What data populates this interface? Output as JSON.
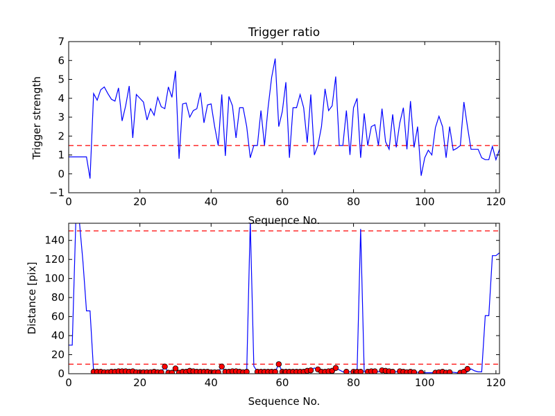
{
  "chart_data": [
    {
      "type": "line",
      "title": "Trigger ratio",
      "xlabel": "Sequence No.",
      "ylabel": "Trigger strength",
      "xlim": [
        0,
        121
      ],
      "ylim": [
        -1,
        7
      ],
      "xticks": [
        0,
        20,
        40,
        60,
        80,
        100,
        120
      ],
      "yticks": [
        -1,
        0,
        1,
        2,
        3,
        4,
        5,
        6,
        7
      ],
      "threshold": 1.5,
      "colors": {
        "line": "#0000ff",
        "threshold": "#ff0000"
      },
      "series": [
        {
          "x": [
            0,
            1,
            2,
            3,
            4,
            5,
            6,
            7,
            8,
            9,
            10,
            11,
            12,
            13,
            14,
            15,
            16,
            17,
            18,
            19,
            20,
            21,
            22,
            23,
            24,
            25,
            26,
            27,
            28,
            29,
            30,
            31,
            32,
            33,
            34,
            35,
            36,
            37,
            38,
            39,
            40,
            41,
            42,
            43,
            44,
            45,
            46,
            47,
            48,
            49,
            50,
            51,
            52,
            53,
            54,
            55,
            56,
            57,
            58,
            59,
            60,
            61,
            62,
            63,
            64,
            65,
            66,
            67,
            68,
            69,
            70,
            71,
            72,
            73,
            74,
            75,
            76,
            77,
            78,
            79,
            80,
            81,
            82,
            83,
            84,
            85,
            86,
            87,
            88,
            89,
            90,
            91,
            92,
            93,
            94,
            95,
            96,
            97,
            98,
            99,
            100,
            101,
            102,
            103,
            104,
            105,
            106,
            107,
            108,
            109,
            110,
            111,
            112,
            113,
            114,
            115,
            116,
            117,
            118,
            119,
            120,
            121
          ],
          "y": [
            0.9,
            0.9,
            0.9,
            0.9,
            0.9,
            0.9,
            -0.25,
            4.25,
            3.9,
            4.45,
            4.6,
            4.25,
            3.95,
            3.85,
            4.55,
            2.8,
            3.6,
            4.65,
            1.9,
            4.2,
            4.0,
            3.8,
            2.85,
            3.45,
            3.1,
            4.05,
            3.55,
            3.45,
            4.6,
            4.05,
            5.45,
            0.8,
            3.7,
            3.75,
            3.0,
            3.35,
            3.45,
            4.3,
            2.7,
            3.65,
            3.7,
            2.5,
            1.5,
            4.2,
            0.95,
            4.1,
            3.6,
            1.9,
            3.5,
            3.5,
            2.5,
            0.85,
            1.5,
            1.5,
            3.35,
            1.5,
            3.5,
            5.1,
            6.1,
            2.5,
            3.3,
            4.85,
            0.85,
            3.5,
            3.5,
            4.2,
            3.5,
            1.65,
            4.2,
            1.0,
            1.5,
            2.5,
            4.5,
            3.35,
            3.6,
            5.15,
            1.5,
            1.5,
            3.35,
            1.0,
            3.5,
            4.0,
            0.85,
            3.2,
            1.5,
            2.5,
            2.6,
            1.5,
            3.45,
            1.7,
            1.3,
            3.15,
            1.4,
            2.7,
            3.5,
            1.3,
            3.85,
            1.4,
            2.5,
            -0.1,
            0.85,
            1.25,
            1.0,
            2.45,
            3.05,
            2.5,
            0.85,
            2.5,
            1.25,
            1.35,
            1.5,
            3.8,
            2.5,
            1.3,
            1.3,
            1.3,
            0.85,
            0.75,
            0.75,
            1.45,
            0.75,
            1.3
          ]
        }
      ]
    },
    {
      "type": "line",
      "xlabel": "Sequence No.",
      "ylabel": "Distance [pix]",
      "xlim": [
        0,
        121
      ],
      "ylim": [
        0,
        158
      ],
      "xticks": [
        0,
        20,
        40,
        60,
        80,
        100,
        120
      ],
      "yticks": [
        0,
        20,
        40,
        60,
        80,
        100,
        120,
        140
      ],
      "thresholds": [
        10,
        150
      ],
      "colors": {
        "line": "#0000ff",
        "threshold": "#ff0000",
        "marker": "#ff0000"
      },
      "series": [
        {
          "x": [
            0,
            1,
            2,
            3,
            4,
            5,
            6,
            7,
            8,
            9,
            10,
            11,
            12,
            13,
            14,
            15,
            16,
            17,
            18,
            19,
            20,
            21,
            22,
            23,
            24,
            25,
            26,
            27,
            28,
            29,
            30,
            31,
            32,
            33,
            34,
            35,
            36,
            37,
            38,
            39,
            40,
            41,
            42,
            43,
            44,
            45,
            46,
            47,
            48,
            49,
            50,
            51,
            52,
            53,
            54,
            55,
            56,
            57,
            58,
            59,
            60,
            61,
            62,
            63,
            64,
            65,
            66,
            67,
            68,
            69,
            70,
            71,
            72,
            73,
            74,
            75,
            76,
            77,
            78,
            79,
            80,
            81,
            82,
            83,
            84,
            85,
            86,
            87,
            88,
            89,
            90,
            91,
            92,
            93,
            94,
            95,
            96,
            97,
            98,
            99,
            100,
            101,
            102,
            103,
            104,
            105,
            106,
            107,
            108,
            109,
            110,
            111,
            112,
            113,
            114,
            115,
            116,
            117,
            118,
            119,
            120,
            121
          ],
          "y": [
            30,
            30,
            160,
            160,
            118,
            66,
            66,
            2,
            2,
            2,
            1.5,
            1.5,
            2,
            2,
            2.5,
            2.5,
            2.5,
            2,
            2.5,
            1.5,
            1.5,
            1.5,
            1.5,
            1.5,
            2,
            1.5,
            1.5,
            7.5,
            1,
            1,
            5.5,
            1,
            2,
            2,
            3,
            2.5,
            2,
            2,
            2,
            2,
            1.5,
            1.5,
            1.5,
            7.5,
            2,
            2,
            2.5,
            2.5,
            2,
            1.5,
            2,
            160,
            8,
            2,
            2,
            2,
            2,
            2,
            2,
            10,
            2,
            2,
            2,
            2,
            2,
            2,
            2,
            3,
            3.5,
            6,
            4.5,
            2,
            2,
            2.5,
            3,
            6,
            4,
            2,
            2,
            2,
            2,
            2,
            152,
            2,
            2,
            2.5,
            2.5,
            2,
            3.5,
            3,
            2.5,
            2,
            2,
            2.5,
            2,
            1.5,
            2,
            1.5,
            1.5,
            1,
            1,
            1,
            1,
            1,
            1,
            1.5,
            2,
            1,
            1.5,
            1,
            1,
            1.5,
            2,
            5,
            3,
            2,
            2,
            61,
            61,
            124,
            124,
            127
          ]
        }
      ],
      "markers": {
        "x": [
          7,
          8,
          9,
          10,
          11,
          12,
          13,
          14,
          15,
          16,
          17,
          18,
          19,
          20,
          21,
          22,
          23,
          24,
          25,
          26,
          27,
          28,
          29,
          30,
          31,
          32,
          33,
          34,
          35,
          36,
          37,
          38,
          39,
          40,
          41,
          42,
          43,
          44,
          45,
          46,
          47,
          48,
          49,
          50,
          53,
          54,
          55,
          56,
          57,
          58,
          59,
          60,
          61,
          62,
          63,
          64,
          65,
          66,
          67,
          68,
          70,
          71,
          72,
          73,
          74,
          75,
          78,
          80,
          81,
          82,
          84,
          85,
          86,
          88,
          89,
          90,
          91,
          93,
          94,
          95,
          96,
          97,
          99,
          103,
          104,
          105,
          106,
          107,
          110,
          111,
          112
        ],
        "y": [
          2,
          2,
          2,
          1.5,
          1.5,
          2,
          2,
          2.5,
          2.5,
          2.5,
          2,
          2.5,
          1.5,
          1.5,
          1.5,
          1.5,
          1.5,
          2,
          1.5,
          1.5,
          7.5,
          1,
          1,
          5.5,
          1,
          2,
          2,
          3,
          2.5,
          2,
          2,
          2,
          2,
          1.5,
          1.5,
          1.5,
          7.5,
          2,
          2,
          2.5,
          2.5,
          2,
          1.5,
          2,
          2,
          2,
          2,
          2,
          2,
          2,
          10,
          2,
          2,
          2,
          2,
          2,
          2,
          2,
          3,
          3.5,
          4.5,
          2,
          2,
          2.5,
          3,
          6,
          2,
          2,
          2,
          2,
          2,
          2.5,
          2.5,
          3.5,
          3,
          2.5,
          2,
          2.5,
          2,
          1.5,
          2,
          1.5,
          1,
          1,
          1.5,
          2,
          1,
          1.5,
          1,
          2,
          5
        ]
      }
    }
  ]
}
